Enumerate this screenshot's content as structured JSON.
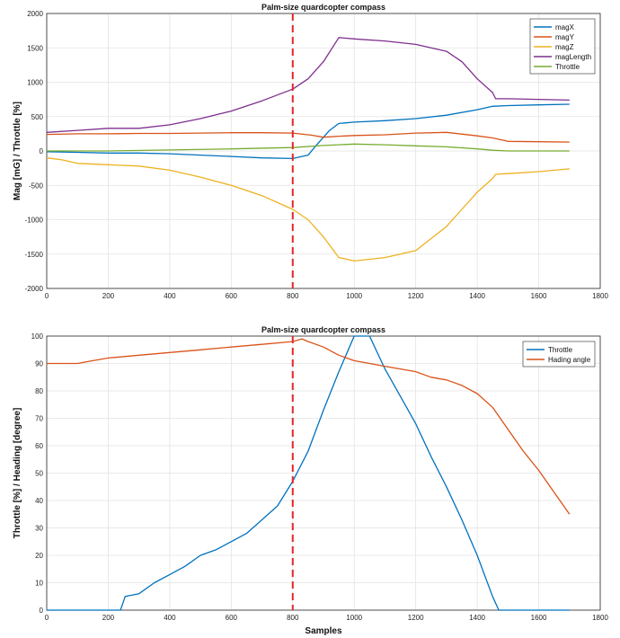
{
  "chart_data": [
    {
      "type": "line",
      "title": "Palm-size quardcopter compass",
      "xlabel": "",
      "ylabel": "Mag [mG] / Throttle [%]",
      "xlim": [
        0,
        1800
      ],
      "ylim": [
        -2000,
        2000
      ],
      "xticks": [
        0,
        200,
        400,
        600,
        800,
        1000,
        1200,
        1400,
        1600,
        1800
      ],
      "yticks": [
        -2000,
        -1500,
        -1000,
        -500,
        0,
        500,
        1000,
        1500,
        2000
      ],
      "grid": true,
      "legend_position": "top-right",
      "vline_x": 800,
      "series": [
        {
          "name": "magX",
          "color": "#0072BD",
          "x": [
            0,
            100,
            200,
            300,
            400,
            500,
            600,
            700,
            800,
            850,
            880,
            920,
            950,
            1000,
            1100,
            1200,
            1300,
            1400,
            1450,
            1500,
            1600,
            1700
          ],
          "y": [
            -10,
            -20,
            -30,
            -30,
            -40,
            -60,
            -80,
            -100,
            -110,
            -60,
            100,
            300,
            400,
            420,
            440,
            470,
            520,
            600,
            650,
            660,
            670,
            680
          ]
        },
        {
          "name": "magY",
          "color": "#D95319",
          "x": [
            0,
            100,
            200,
            300,
            400,
            500,
            600,
            700,
            800,
            860,
            900,
            950,
            1000,
            1100,
            1200,
            1300,
            1400,
            1450,
            1500,
            1600,
            1700
          ],
          "y": [
            240,
            250,
            250,
            255,
            255,
            260,
            265,
            265,
            260,
            230,
            200,
            215,
            225,
            235,
            260,
            270,
            220,
            190,
            140,
            135,
            130
          ]
        },
        {
          "name": "magZ",
          "color": "#EDB120",
          "x": [
            0,
            50,
            100,
            200,
            300,
            400,
            500,
            600,
            700,
            800,
            850,
            900,
            950,
            1000,
            1100,
            1200,
            1300,
            1350,
            1400,
            1450,
            1460,
            1500,
            1600,
            1700
          ],
          "y": [
            -100,
            -130,
            -180,
            -200,
            -220,
            -280,
            -380,
            -500,
            -650,
            -850,
            -1000,
            -1250,
            -1550,
            -1600,
            -1550,
            -1450,
            -1100,
            -850,
            -600,
            -400,
            -340,
            -330,
            -300,
            -260
          ]
        },
        {
          "name": "magLength",
          "color": "#7E2F8E",
          "x": [
            0,
            100,
            200,
            300,
            400,
            500,
            600,
            700,
            800,
            850,
            900,
            950,
            1000,
            1100,
            1200,
            1250,
            1300,
            1350,
            1400,
            1450,
            1460,
            1500,
            1600,
            1700
          ],
          "y": [
            270,
            300,
            330,
            330,
            380,
            470,
            580,
            730,
            900,
            1050,
            1300,
            1650,
            1630,
            1600,
            1550,
            1500,
            1450,
            1300,
            1050,
            850,
            760,
            760,
            750,
            740
          ]
        },
        {
          "name": "Throttle",
          "color": "#77AC30",
          "x": [
            0,
            200,
            400,
            600,
            800,
            900,
            1000,
            1100,
            1200,
            1300,
            1400,
            1450,
            1500,
            1700
          ],
          "y": [
            0,
            0,
            15,
            30,
            50,
            80,
            100,
            90,
            75,
            60,
            30,
            10,
            0,
            0
          ]
        }
      ]
    },
    {
      "type": "line",
      "title": "Palm-size quardcopter compass",
      "xlabel": "Samples",
      "ylabel": "Throttle [%] / Heading [degree]",
      "xlim": [
        0,
        1800
      ],
      "ylim": [
        0,
        100
      ],
      "xticks": [
        0,
        200,
        400,
        600,
        800,
        1000,
        1200,
        1400,
        1600,
        1800
      ],
      "yticks": [
        0,
        10,
        20,
        30,
        40,
        50,
        60,
        70,
        80,
        90,
        100
      ],
      "grid": true,
      "legend_position": "top-right",
      "vline_x": 800,
      "series": [
        {
          "name": "Throttle",
          "color": "#0072BD",
          "x": [
            0,
            240,
            255,
            300,
            350,
            400,
            450,
            500,
            550,
            600,
            650,
            700,
            750,
            800,
            850,
            900,
            950,
            1000,
            1050,
            1100,
            1150,
            1200,
            1250,
            1300,
            1350,
            1400,
            1450,
            1470,
            1550,
            1700
          ],
          "y": [
            0,
            0,
            5,
            6,
            10,
            13,
            16,
            20,
            22,
            25,
            28,
            33,
            38,
            47,
            58,
            73,
            87,
            100,
            100,
            88,
            78,
            68,
            56,
            45,
            33,
            20,
            5,
            0,
            0,
            0
          ]
        },
        {
          "name": "Hading angle",
          "color": "#D95319",
          "x": [
            0,
            100,
            150,
            200,
            300,
            400,
            500,
            600,
            700,
            800,
            830,
            850,
            900,
            950,
            1000,
            1050,
            1100,
            1200,
            1250,
            1300,
            1350,
            1400,
            1450,
            1500,
            1550,
            1600,
            1650,
            1700
          ],
          "y": [
            90,
            90,
            91,
            92,
            93,
            94,
            95,
            96,
            97,
            98,
            99,
            98,
            96,
            93,
            91,
            90,
            89,
            87,
            85,
            84,
            82,
            79,
            74,
            66,
            58,
            51,
            43,
            35
          ]
        }
      ]
    }
  ]
}
